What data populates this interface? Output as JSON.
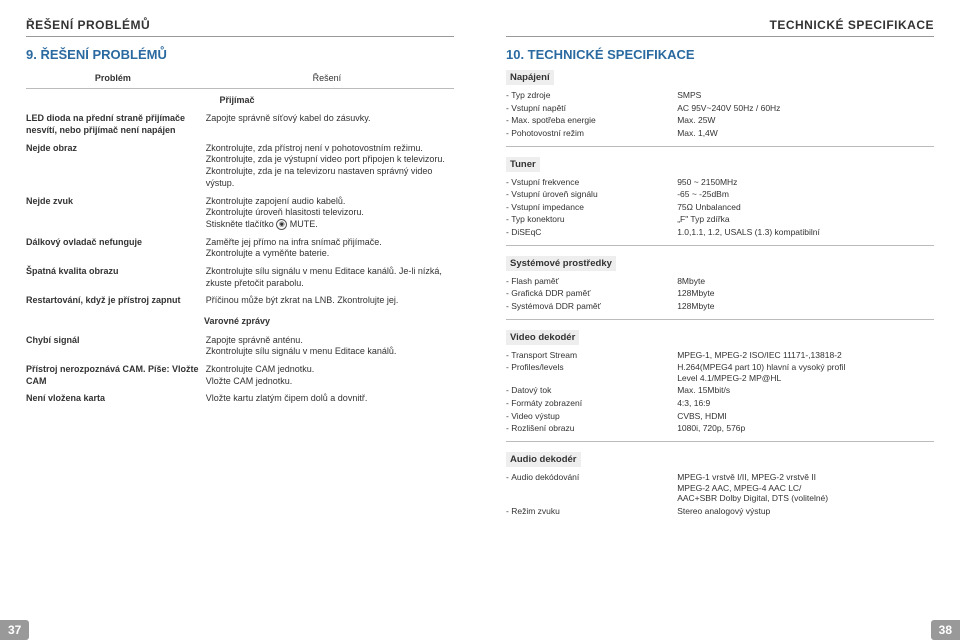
{
  "left": {
    "header": "ŘEŠENÍ PROBLÉMŮ",
    "section_title": "9. ŘEŠENÍ PROBLÉMŮ",
    "col_problem": "Problém",
    "col_solution": "Řešení",
    "sub_receiver": "Přijímač",
    "sub_warnings": "Varovné zprávy",
    "rows": [
      {
        "p": "LED dioda na přední straně přijímače nesvítí, nebo přijímač není napájen",
        "s": "Zapojte správně síťový kabel do zásuvky."
      },
      {
        "p": "Nejde obraz",
        "s": "Zkontrolujte, zda přístroj není v pohotovostním režimu.\nZkontrolujte, zda je výstupní video port připojen k televizoru.\nZkontrolujte, zda je na televizoru nastaven správný video výstup."
      },
      {
        "p": "Nejde zvuk",
        "s": "Zkontrolujte zapojení audio kabelů.\nZkontrolujte úroveň hlasitosti televizoru.\nStiskněte tlačítko ⦿ MUTE."
      },
      {
        "p": "Dálkový ovladač nefunguje",
        "s": "Zaměřte jej přímo na infra snímač přijímače.\nZkontrolujte a vyměňte baterie."
      },
      {
        "p": "Špatná kvalita obrazu",
        "s": "Zkontrolujte sílu signálu v menu Editace kanálů. Je-li nízká, zkuste přetočit parabolu."
      },
      {
        "p": "Restartování, když je přístroj zapnut",
        "s": "Příčinou může být zkrat na LNB. Zkontrolujte jej."
      }
    ],
    "rows2": [
      {
        "p": "Chybí signál",
        "s": "Zapojte správně anténu.\nZkontrolujte sílu signálu v menu Editace kanálů."
      },
      {
        "p": "Přístroj nerozpoznává CAM.\nPíše: Vložte CAM",
        "s": "Zkontrolujte CAM jednotku.\nVložte CAM jednotku."
      },
      {
        "p": "Není vložena karta",
        "s": "Vložte kartu zlatým čipem dolů a dovnitř."
      }
    ],
    "page_num": "37"
  },
  "right": {
    "header": "TECHNICKÉ SPECIFIKACE",
    "section_title": "10. TECHNICKÉ SPECIFIKACE",
    "blocks": [
      {
        "heading": "Napájení",
        "rows": [
          {
            "k": "Typ zdroje",
            "v": "SMPS"
          },
          {
            "k": "Vstupní napětí",
            "v": "AC 95V~240V 50Hz / 60Hz"
          },
          {
            "k": "Max. spotřeba energie",
            "v": "Max. 25W"
          },
          {
            "k": "Pohotovostní režim",
            "v": "Max. 1,4W"
          }
        ]
      },
      {
        "heading": "Tuner",
        "rows": [
          {
            "k": "Vstupní frekvence",
            "v": "950 ~ 2150MHz"
          },
          {
            "k": "Vstupní úroveň signálu",
            "v": "-65 ~ -25dBm"
          },
          {
            "k": "Vstupní impedance",
            "v": "75Ω Unbalanced"
          },
          {
            "k": "Typ konektoru",
            "v": "„F\" Typ zdířka"
          },
          {
            "k": "DiSEqC",
            "v": "1.0,1.1, 1.2, USALS (1.3) kompatibilní"
          }
        ]
      },
      {
        "heading": "Systémové prostředky",
        "rows": [
          {
            "k": "Flash paměť",
            "v": "8Mbyte"
          },
          {
            "k": "Grafická DDR paměť",
            "v": "128Mbyte"
          },
          {
            "k": "Systémová DDR paměť",
            "v": "128Mbyte"
          }
        ]
      },
      {
        "heading": "Video dekodér",
        "rows": [
          {
            "k": "Transport Stream",
            "v": "MPEG-1, MPEG-2 ISO/IEC 11171-,13818-2"
          },
          {
            "k": "Profiles/levels",
            "v": "H.264(MPEG4 part 10) hlavní a vysoký profil\nLevel 4.1/MPEG-2 MP@HL"
          },
          {
            "k": "Datový tok",
            "v": "Max. 15Mbit/s"
          },
          {
            "k": "Formáty zobrazení",
            "v": "4:3, 16:9"
          },
          {
            "k": "Video výstup",
            "v": "CVBS, HDMI"
          },
          {
            "k": "Rozlišení obrazu",
            "v": "1080i, 720p, 576p"
          }
        ]
      },
      {
        "heading": "Audio dekodér",
        "rows": [
          {
            "k": "Audio dekódování",
            "v": "MPEG-1 vrstvě I/II, MPEG-2 vrstvě II\nMPEG-2 AAC, MPEG-4 AAC LC/\nAAC+SBR Dolby Digital, DTS (volitelné)"
          },
          {
            "k": "Režim zvuku",
            "v": "Stereo analogový výstup"
          }
        ]
      }
    ],
    "page_num": "38"
  }
}
